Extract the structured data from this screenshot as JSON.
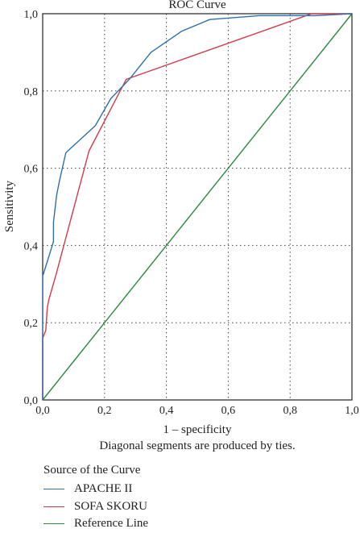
{
  "chart_data": {
    "type": "line",
    "title": "ROC Curve",
    "xlabel": "1 – specificity",
    "ylabel": "Sensitivity",
    "note": "Diagonal segments are produced by ties.",
    "xlim": [
      0,
      1
    ],
    "ylim": [
      0,
      1
    ],
    "grid": "dotted",
    "xticks": [
      "0,0",
      "0,2",
      "0,4",
      "0,6",
      "0,8",
      "1,0"
    ],
    "yticks": [
      "0,0",
      "0,2",
      "0,4",
      "0,6",
      "0,8",
      "1,0"
    ],
    "legend_title": "Source of the Curve",
    "legend_position": "bottom",
    "series": [
      {
        "name": "APACHE II",
        "color": "#2f6fa8",
        "x": [
          0,
          0,
          0.035,
          0.035,
          0.045,
          0.055,
          0.075,
          0.17,
          0.22,
          0.28,
          0.35,
          0.45,
          0.54,
          0.7,
          0.88,
          1.0
        ],
        "y": [
          0,
          0.32,
          0.41,
          0.46,
          0.53,
          0.57,
          0.64,
          0.71,
          0.78,
          0.83,
          0.9,
          0.955,
          0.985,
          0.995,
          0.995,
          1.0
        ]
      },
      {
        "name": "SOFA SKORU",
        "color": "#d13b4b",
        "x": [
          0,
          0,
          0.01,
          0.015,
          0.02,
          0.045,
          0.15,
          0.27,
          0.87,
          1.0
        ],
        "y": [
          0,
          0.16,
          0.18,
          0.24,
          0.26,
          0.33,
          0.645,
          0.83,
          1.0,
          1.0
        ]
      },
      {
        "name": "Reference Line",
        "color": "#2a8a3a",
        "x": [
          0,
          1
        ],
        "y": [
          0,
          1
        ]
      }
    ]
  }
}
